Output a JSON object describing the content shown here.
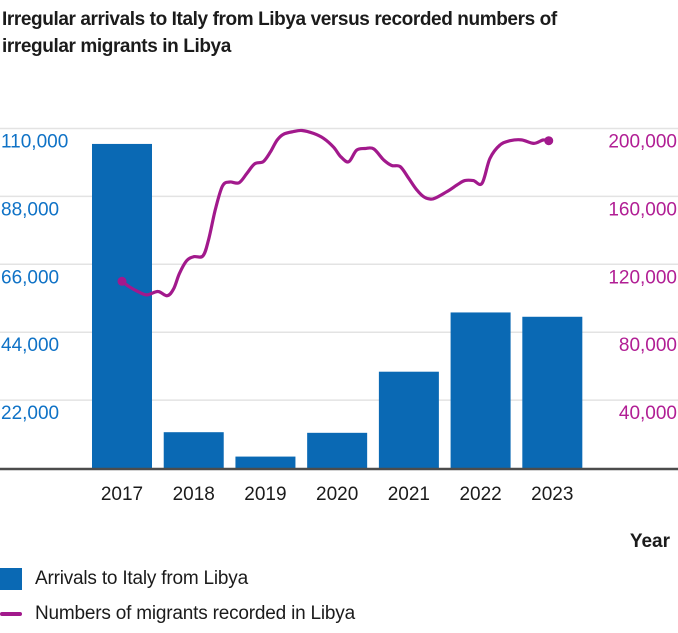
{
  "title_line1": "Irregular arrivals to Italy from Libya versus recorded numbers of",
  "title_line2": "irregular migrants in Libya",
  "legend": {
    "bars_label": "Arrivals to Italy from Libya",
    "line_label": "Numbers of migrants recorded in Libya"
  },
  "colors": {
    "bar": "#0a69b4",
    "left_axis_text": "#0f72c6",
    "line": "#a2198c",
    "right_axis_text": "#b11e94",
    "gridline": "#e3e3e3",
    "baseline": "#4c4c4c",
    "text": "#1b1b1b"
  },
  "chart_data": {
    "type": "bar",
    "subtype": "dual-axis bar + line",
    "title": "Irregular arrivals to Italy from Libya versus recorded numbers of irregular migrants in Libya",
    "categories": [
      "2017",
      "2018",
      "2019",
      "2020",
      "2021",
      "2022",
      "2023"
    ],
    "series": [
      {
        "name": "Arrivals to Italy from Libya",
        "type": "bar",
        "axis": "left",
        "values": [
          105000,
          11600,
          3700,
          11400,
          31200,
          50400,
          49000
        ]
      },
      {
        "name": "Numbers of migrants recorded in Libya",
        "type": "line",
        "axis": "right",
        "points": [
          [
            2017.0,
            110000
          ],
          [
            2017.1,
            106800
          ],
          [
            2017.22,
            104000
          ],
          [
            2017.35,
            102000
          ],
          [
            2017.5,
            104000
          ],
          [
            2017.63,
            101500
          ],
          [
            2017.72,
            105500
          ],
          [
            2017.8,
            114500
          ],
          [
            2017.9,
            122000
          ],
          [
            2018.0,
            124500
          ],
          [
            2018.13,
            125000
          ],
          [
            2018.21,
            135000
          ],
          [
            2018.3,
            152000
          ],
          [
            2018.4,
            166000
          ],
          [
            2018.5,
            168500
          ],
          [
            2018.63,
            168000
          ],
          [
            2018.74,
            173500
          ],
          [
            2018.85,
            179200
          ],
          [
            2018.97,
            180500
          ],
          [
            2019.07,
            186300
          ],
          [
            2019.16,
            193000
          ],
          [
            2019.25,
            196600
          ],
          [
            2019.39,
            198200
          ],
          [
            2019.51,
            198800
          ],
          [
            2019.67,
            197100
          ],
          [
            2019.81,
            194200
          ],
          [
            2019.95,
            189000
          ],
          [
            2020.05,
            183400
          ],
          [
            2020.16,
            180400
          ],
          [
            2020.27,
            187200
          ],
          [
            2020.39,
            188200
          ],
          [
            2020.51,
            188000
          ],
          [
            2020.65,
            181400
          ],
          [
            2020.76,
            178200
          ],
          [
            2020.88,
            177500
          ],
          [
            2021.0,
            170500
          ],
          [
            2021.11,
            163800
          ],
          [
            2021.22,
            159400
          ],
          [
            2021.34,
            158600
          ],
          [
            2021.53,
            162800
          ],
          [
            2021.67,
            166700
          ],
          [
            2021.78,
            169300
          ],
          [
            2021.9,
            169300
          ],
          [
            2022.02,
            167700
          ],
          [
            2022.13,
            182300
          ],
          [
            2022.27,
            190300
          ],
          [
            2022.41,
            192800
          ],
          [
            2022.57,
            193300
          ],
          [
            2022.74,
            191200
          ],
          [
            2022.87,
            193200
          ],
          [
            2022.95,
            192800
          ]
        ]
      }
    ],
    "left_axis": {
      "tick_labels": [
        "110,000",
        "88,000",
        "66,000",
        "44,000",
        "22,000"
      ],
      "tick_values": [
        110000,
        88000,
        66000,
        44000,
        22000
      ],
      "range": [
        0,
        110000
      ]
    },
    "right_axis": {
      "tick_labels": [
        "200,000",
        "160,000",
        "120,000",
        "80,000",
        "40,000"
      ],
      "tick_values": [
        200000,
        160000,
        120000,
        80000,
        40000
      ],
      "range": [
        0,
        200000
      ]
    },
    "xlabel": "Year",
    "ylabel": "",
    "grid": "horizontal",
    "legend_position": "bottom-left"
  }
}
